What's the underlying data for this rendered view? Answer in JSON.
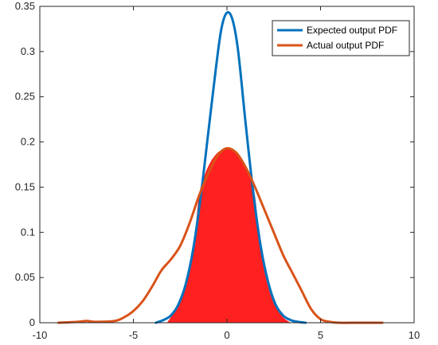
{
  "chart_data": {
    "type": "line",
    "title": "",
    "xlabel": "",
    "ylabel": "",
    "xlim": [
      -10,
      10
    ],
    "ylim": [
      0,
      0.35
    ],
    "xticks": [
      -10,
      -5,
      0,
      5,
      10
    ],
    "yticks": [
      0,
      0.05,
      0.1,
      0.15,
      0.2,
      0.25,
      0.3,
      0.35
    ],
    "grid": false,
    "legend_position": "top-right",
    "series": [
      {
        "name": "Expected output PDF",
        "color": "#0072BD",
        "x": [
          -3.8,
          -3.4,
          -3.0,
          -2.6,
          -2.2,
          -1.8,
          -1.4,
          -1.0,
          -0.6,
          -0.3,
          0.0,
          0.3,
          0.6,
          1.0,
          1.4,
          1.8,
          2.2,
          2.6,
          3.0,
          3.4,
          3.8,
          4.2
        ],
        "y": [
          0.0,
          0.003,
          0.008,
          0.02,
          0.043,
          0.082,
          0.14,
          0.21,
          0.28,
          0.325,
          0.343,
          0.335,
          0.3,
          0.22,
          0.145,
          0.085,
          0.045,
          0.02,
          0.008,
          0.003,
          0.001,
          0.0
        ]
      },
      {
        "name": "Actual output PDF",
        "color": "#D95319",
        "x": [
          -9.0,
          -8.0,
          -7.5,
          -7.0,
          -6.0,
          -5.5,
          -5.0,
          -4.5,
          -4.0,
          -3.5,
          -3.0,
          -2.5,
          -2.0,
          -1.5,
          -1.0,
          -0.5,
          0.0,
          0.5,
          1.0,
          1.5,
          2.0,
          2.5,
          3.0,
          3.5,
          4.0,
          4.5,
          5.0,
          5.5,
          6.0,
          7.0,
          8.0,
          8.3
        ],
        "y": [
          0.0,
          0.001,
          0.002,
          0.001,
          0.002,
          0.006,
          0.013,
          0.024,
          0.04,
          0.058,
          0.07,
          0.085,
          0.11,
          0.14,
          0.165,
          0.185,
          0.193,
          0.188,
          0.172,
          0.15,
          0.125,
          0.1,
          0.075,
          0.055,
          0.035,
          0.015,
          0.004,
          0.001,
          0.0,
          0.0,
          0.0,
          0.0
        ]
      }
    ],
    "filled_region": {
      "color": "#FF2020",
      "x": [
        -3.2,
        -3.0,
        -2.6,
        -2.2,
        -1.8,
        -1.5,
        -1.2,
        -0.9,
        -0.6,
        -0.3,
        0.0,
        0.3,
        0.6,
        0.9,
        1.2,
        1.5,
        1.8,
        2.2,
        2.6,
        3.0,
        3.4
      ],
      "y": [
        0.0,
        0.006,
        0.018,
        0.04,
        0.08,
        0.14,
        0.163,
        0.177,
        0.186,
        0.191,
        0.193,
        0.191,
        0.186,
        0.177,
        0.163,
        0.14,
        0.08,
        0.04,
        0.018,
        0.006,
        0.0
      ]
    }
  }
}
